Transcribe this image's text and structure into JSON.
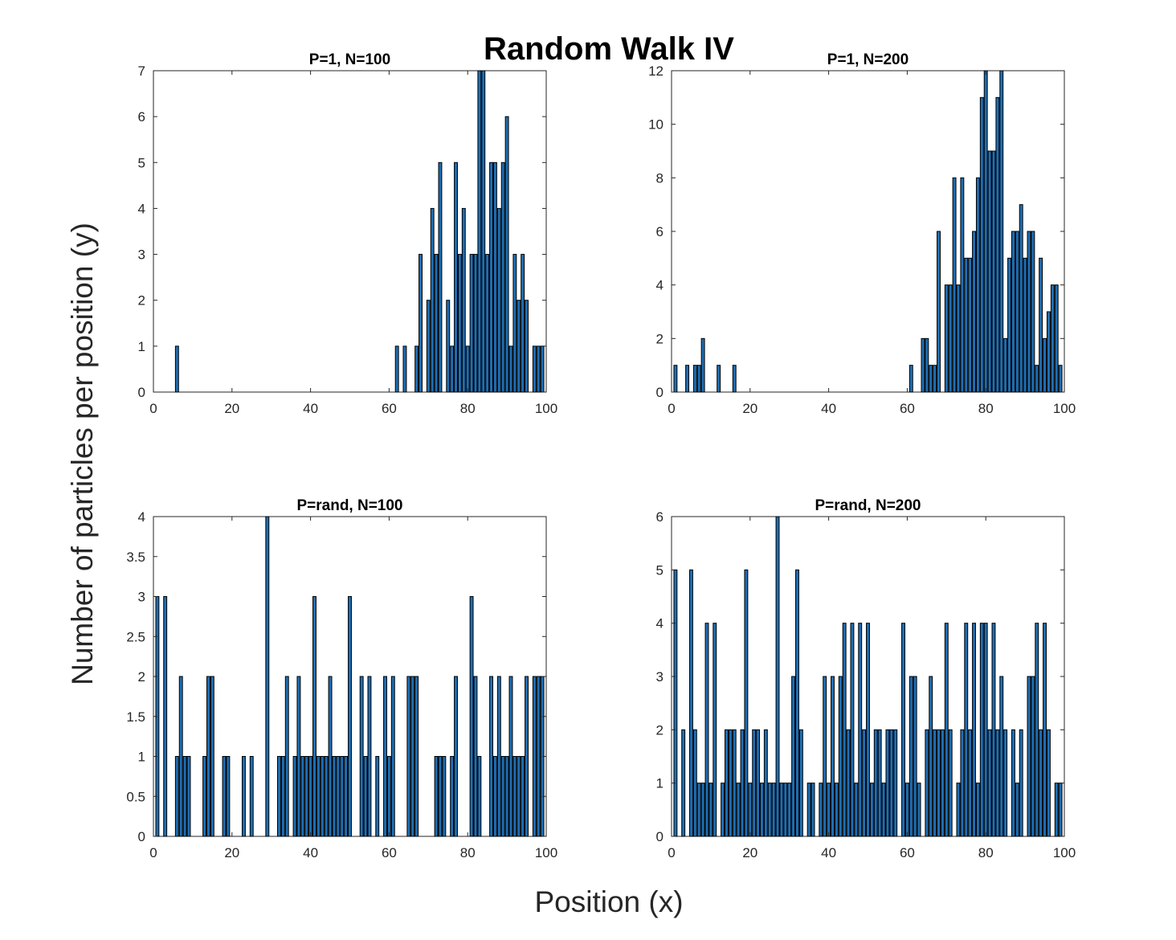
{
  "figure": {
    "title": "Random Walk IV",
    "xlabel": "Position (x)",
    "ylabel": "Number of particles per position (y)",
    "bar_color": "#1f6fb4",
    "edge_color": "#000000"
  },
  "chart_data": [
    {
      "type": "bar",
      "title": "P=1, N=100",
      "xlim": [
        0,
        100
      ],
      "ylim": [
        0,
        7
      ],
      "xticks": [
        0,
        20,
        40,
        60,
        80,
        100
      ],
      "yticks": [
        0,
        1,
        2,
        3,
        4,
        5,
        6,
        7
      ],
      "ytick_labels": [
        "0",
        "1",
        "2",
        "3",
        "4",
        "5",
        "6",
        "7"
      ],
      "x": [
        6,
        62,
        64,
        67,
        68,
        70,
        71,
        72,
        73,
        75,
        76,
        77,
        78,
        79,
        80,
        81,
        82,
        83,
        84,
        85,
        86,
        87,
        88,
        89,
        90,
        91,
        92,
        93,
        94,
        95,
        97,
        98,
        99
      ],
      "values": [
        1,
        1,
        1,
        1,
        3,
        2,
        4,
        3,
        5,
        2,
        1,
        5,
        3,
        4,
        1,
        3,
        3,
        7,
        7,
        3,
        5,
        5,
        4,
        5,
        6,
        1,
        3,
        2,
        3,
        2,
        1,
        1,
        1
      ]
    },
    {
      "type": "bar",
      "title": "P=1, N=200",
      "xlim": [
        0,
        100
      ],
      "ylim": [
        0,
        12
      ],
      "xticks": [
        0,
        20,
        40,
        60,
        80,
        100
      ],
      "yticks": [
        0,
        2,
        4,
        6,
        8,
        10,
        12
      ],
      "ytick_labels": [
        "0",
        "2",
        "4",
        "6",
        "8",
        "10",
        "12"
      ],
      "x": [
        1,
        4,
        6,
        7,
        8,
        12,
        16,
        61,
        64,
        65,
        66,
        67,
        68,
        70,
        71,
        72,
        73,
        74,
        75,
        76,
        77,
        78,
        79,
        80,
        81,
        82,
        83,
        84,
        85,
        86,
        87,
        88,
        89,
        90,
        91,
        92,
        93,
        94,
        95,
        96,
        97,
        98,
        99
      ],
      "values": [
        1,
        1,
        1,
        1,
        2,
        1,
        1,
        1,
        2,
        2,
        1,
        1,
        6,
        4,
        4,
        8,
        4,
        8,
        5,
        5,
        6,
        8,
        11,
        12,
        9,
        9,
        11,
        12,
        2,
        5,
        6,
        6,
        7,
        5,
        6,
        6,
        1,
        5,
        2,
        3,
        4,
        4,
        1
      ]
    },
    {
      "type": "bar",
      "title": "P=rand, N=100",
      "xlim": [
        0,
        100
      ],
      "ylim": [
        0,
        4
      ],
      "xticks": [
        0,
        20,
        40,
        60,
        80,
        100
      ],
      "yticks": [
        0,
        0.5,
        1,
        1.5,
        2,
        2.5,
        3,
        3.5,
        4
      ],
      "ytick_labels": [
        "0",
        "0.5",
        "1",
        "1.5",
        "2",
        "2.5",
        "3",
        "3.5",
        "4"
      ],
      "x": [
        1,
        3,
        6,
        7,
        8,
        9,
        13,
        14,
        15,
        18,
        19,
        23,
        25,
        29,
        32,
        33,
        34,
        36,
        37,
        38,
        39,
        40,
        41,
        42,
        43,
        44,
        45,
        46,
        47,
        48,
        49,
        50,
        53,
        54,
        55,
        57,
        59,
        60,
        61,
        65,
        66,
        67,
        72,
        73,
        74,
        76,
        77,
        81,
        82,
        83,
        86,
        87,
        88,
        89,
        90,
        91,
        92,
        93,
        94,
        95,
        97,
        98,
        99
      ],
      "values": [
        3,
        3,
        1,
        2,
        1,
        1,
        1,
        2,
        2,
        1,
        1,
        1,
        1,
        4,
        1,
        1,
        2,
        1,
        2,
        1,
        1,
        1,
        3,
        1,
        1,
        1,
        2,
        1,
        1,
        1,
        1,
        3,
        2,
        1,
        2,
        1,
        2,
        1,
        2,
        2,
        2,
        2,
        1,
        1,
        1,
        1,
        2,
        3,
        2,
        1,
        2,
        1,
        2,
        1,
        1,
        2,
        1,
        1,
        1,
        2,
        2,
        2,
        2
      ]
    },
    {
      "type": "bar",
      "title": "P=rand, N=200",
      "xlim": [
        0,
        100
      ],
      "ylim": [
        0,
        6
      ],
      "xticks": [
        0,
        20,
        40,
        60,
        80,
        100
      ],
      "yticks": [
        0,
        1,
        2,
        3,
        4,
        5,
        6
      ],
      "ytick_labels": [
        "0",
        "1",
        "2",
        "3",
        "4",
        "5",
        "6"
      ],
      "x": [
        1,
        3,
        5,
        6,
        7,
        8,
        9,
        10,
        11,
        13,
        14,
        15,
        16,
        17,
        18,
        19,
        20,
        21,
        22,
        23,
        24,
        25,
        26,
        27,
        28,
        29,
        30,
        31,
        32,
        33,
        35,
        36,
        38,
        39,
        40,
        41,
        42,
        43,
        44,
        45,
        46,
        47,
        48,
        49,
        50,
        51,
        52,
        53,
        54,
        55,
        56,
        57,
        59,
        60,
        61,
        62,
        63,
        65,
        66,
        67,
        68,
        69,
        70,
        71,
        73,
        74,
        75,
        76,
        77,
        78,
        79,
        80,
        81,
        82,
        83,
        84,
        85,
        87,
        88,
        89,
        91,
        92,
        93,
        94,
        95,
        96,
        98,
        99
      ],
      "values": [
        5,
        2,
        5,
        2,
        1,
        1,
        4,
        1,
        4,
        1,
        2,
        2,
        2,
        1,
        2,
        5,
        1,
        2,
        2,
        1,
        2,
        1,
        1,
        6,
        1,
        1,
        1,
        3,
        5,
        2,
        1,
        1,
        1,
        3,
        1,
        3,
        1,
        3,
        4,
        2,
        4,
        1,
        4,
        2,
        4,
        1,
        2,
        2,
        1,
        2,
        2,
        2,
        4,
        1,
        3,
        3,
        1,
        2,
        3,
        2,
        2,
        2,
        4,
        2,
        1,
        2,
        4,
        2,
        4,
        1,
        4,
        4,
        2,
        4,
        2,
        3,
        2,
        2,
        1,
        2,
        3,
        3,
        4,
        2,
        4,
        2,
        1,
        1
      ]
    }
  ]
}
